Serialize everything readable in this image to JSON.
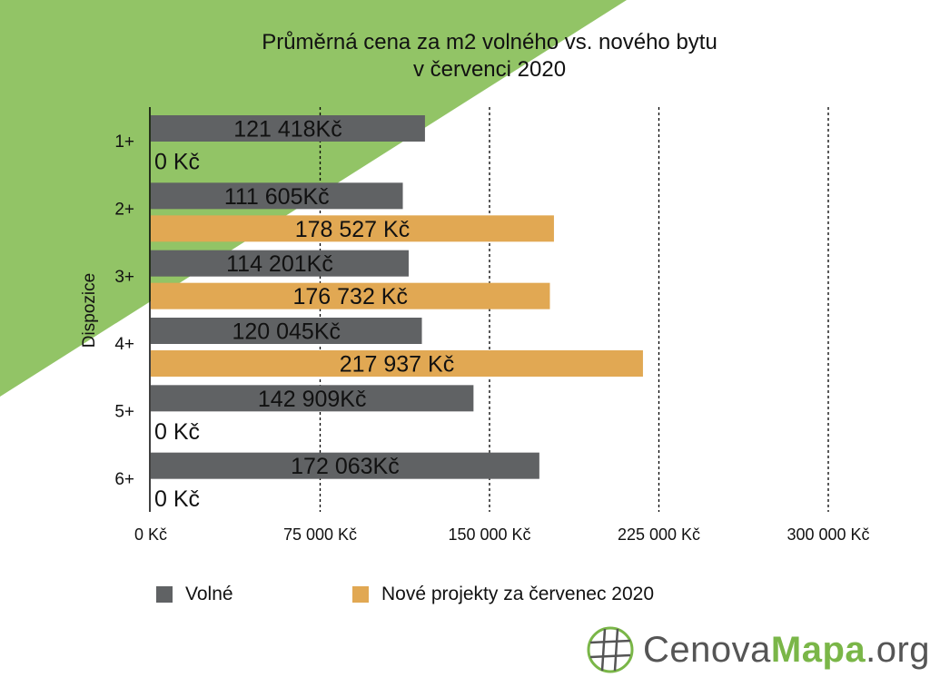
{
  "colors": {
    "background_green": "#92c466",
    "volne": "#606264",
    "nove": "#e1a853",
    "logo_gray": "#555555",
    "logo_green": "#7ab648"
  },
  "chart_data": {
    "type": "bar",
    "orientation": "horizontal",
    "title": [
      "Průměrná cena za m2 volného vs. nového bytu",
      "v červenci 2020"
    ],
    "ylabel": "Dispozice",
    "xlabel": "",
    "categories": [
      "1+",
      "2+",
      "3+",
      "4+",
      "5+",
      "6+"
    ],
    "xlim": [
      0,
      300000
    ],
    "xticks": [
      0,
      75000,
      150000,
      225000,
      300000
    ],
    "xtick_labels": [
      "0 Kč",
      "75 000 Kč",
      "150 000 Kč",
      "225 000 Kč",
      "300 000 Kč"
    ],
    "grid": "vertical dashed",
    "legend_position": "bottom",
    "series": [
      {
        "name": "Volné",
        "color": "#606264",
        "values": [
          121418,
          111605,
          114201,
          120045,
          142909,
          172063
        ],
        "labels": [
          "121 418Kč",
          "111 605Kč",
          "114 201Kč",
          "120 045Kč",
          "142 909Kč",
          "172 063Kč"
        ]
      },
      {
        "name": "Nové projekty za červenec 2020",
        "color": "#e1a853",
        "values": [
          0,
          178527,
          176732,
          217937,
          0,
          0
        ],
        "labels": [
          "0 Kč",
          "178 527 Kč",
          "176 732 Kč",
          "217 937 Kč",
          "0 Kč",
          "0 Kč"
        ]
      }
    ]
  },
  "logo": {
    "text_left": "Cenova",
    "text_mid": "Mapa",
    "text_right": ".org",
    "icon": "globe-grid-icon"
  }
}
